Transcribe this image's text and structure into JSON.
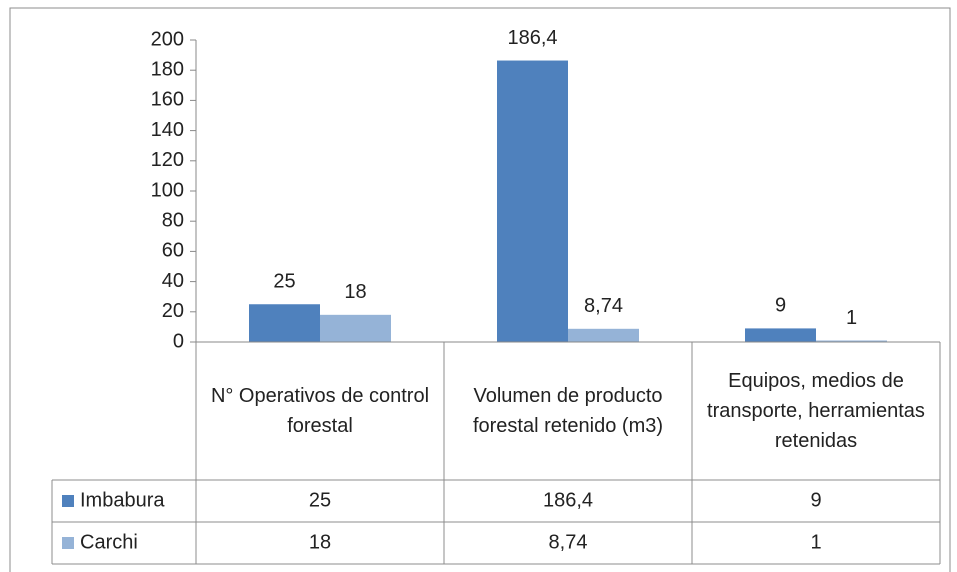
{
  "chart_data": {
    "type": "bar",
    "categories": [
      "N° Operativos de control forestal",
      "Volumen de producto forestal retenido (m3)",
      "Equipos, medios de transporte, herramientas retenidas"
    ],
    "series": [
      {
        "name": "Imbabura",
        "color": "#4f81bd",
        "values": [
          25,
          186.4,
          9
        ],
        "value_labels": [
          "25",
          "186,4",
          "9"
        ]
      },
      {
        "name": "Carchi",
        "color": "#95b3d7",
        "values": [
          18,
          8.74,
          1
        ],
        "value_labels": [
          "18",
          "8,74",
          "1"
        ]
      }
    ],
    "ylim": [
      0,
      200
    ],
    "yticks": [
      0,
      20,
      40,
      60,
      80,
      100,
      120,
      140,
      160,
      180,
      200
    ],
    "grid": false,
    "data_table": true
  }
}
